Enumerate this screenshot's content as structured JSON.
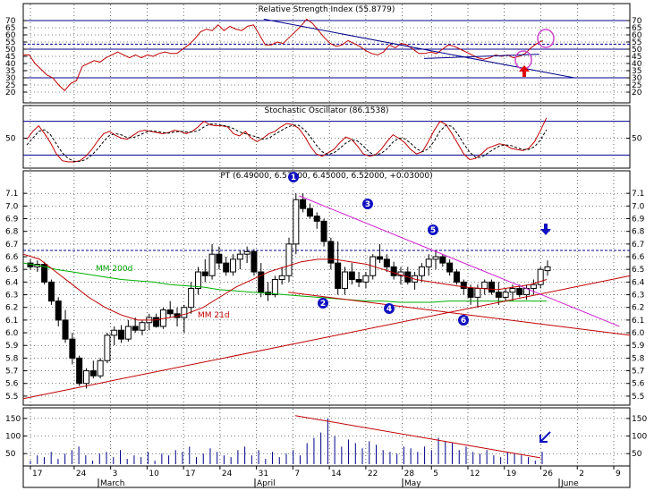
{
  "chart_data": [
    {
      "type": "line",
      "title": "Relative Strength Index (55.8779)",
      "ylim": [
        15,
        75
      ],
      "yticks": [
        20,
        25,
        30,
        35,
        40,
        45,
        50,
        55,
        60,
        65,
        70
      ],
      "reference_lines": [
        70,
        53.5,
        50,
        30
      ],
      "series": [
        {
          "values": [
            46,
            46,
            40,
            36,
            32,
            30,
            25,
            21,
            26,
            28,
            38,
            40,
            42,
            41,
            44,
            46,
            48,
            46,
            44,
            46,
            44,
            46,
            45,
            47,
            48,
            47,
            47,
            50,
            53,
            57,
            62,
            64,
            63,
            67,
            63,
            66,
            64,
            63,
            66,
            67,
            60,
            53,
            53,
            55,
            54,
            58,
            62,
            66,
            71,
            68,
            63,
            58,
            54,
            52,
            53,
            56,
            54,
            52,
            49,
            47,
            46,
            48,
            53,
            51,
            54,
            53,
            50,
            47,
            47,
            48,
            47,
            50,
            53,
            52,
            50,
            48,
            46,
            44,
            43,
            44,
            46,
            45,
            46,
            44,
            45,
            47,
            51,
            54,
            56
          ]
        }
      ],
      "annotations": [
        {
          "type": "trendline",
          "from": [
            48,
            71
          ],
          "to": [
            110,
            30
          ]
        },
        {
          "type": "trendline",
          "from": [
            80,
            43.5
          ],
          "to": [
            103,
            46.5
          ]
        }
      ]
    },
    {
      "type": "line",
      "title": "Stochastic Oscillator (86.1538)",
      "ylim": [
        0,
        100
      ],
      "yticks": [
        50
      ],
      "reference_lines": [
        80,
        20
      ],
      "series": [
        {
          "values": [
            48,
            62,
            72,
            58,
            42,
            22,
            10,
            8,
            8,
            10,
            18,
            30,
            45,
            58,
            62,
            55,
            50,
            48,
            55,
            62,
            64,
            62,
            60,
            58,
            60,
            64,
            62,
            58,
            62,
            70,
            80,
            74,
            72,
            72,
            70,
            58,
            54,
            62,
            50,
            44,
            50,
            58,
            62,
            70,
            76,
            74,
            68,
            54,
            36,
            22,
            18,
            24,
            30,
            42,
            52,
            48,
            36,
            22,
            18,
            20,
            30,
            44,
            56,
            50,
            42,
            30,
            22,
            26,
            44,
            64,
            80,
            74,
            58,
            40,
            22,
            12,
            14,
            22,
            32,
            36,
            40,
            38,
            32,
            30,
            28,
            32,
            44,
            64,
            86
          ]
        },
        {
          "values": [
            38,
            50,
            62,
            65,
            56,
            40,
            24,
            14,
            9,
            9,
            12,
            20,
            31,
            44,
            55,
            58,
            56,
            51,
            51,
            55,
            60,
            63,
            62,
            60,
            59,
            61,
            62,
            61,
            61,
            63,
            70,
            75,
            75,
            73,
            71,
            67,
            61,
            58,
            55,
            52,
            48,
            50,
            57,
            63,
            69,
            73,
            73,
            65,
            53,
            38,
            26,
            21,
            24,
            32,
            41,
            47,
            45,
            36,
            25,
            20,
            23,
            31,
            43,
            50,
            49,
            41,
            31,
            26,
            31,
            45,
            63,
            73,
            71,
            57,
            40,
            25,
            16,
            16,
            23,
            30,
            36,
            38,
            37,
            33,
            30,
            30,
            35,
            47,
            65
          ]
        }
      ]
    },
    {
      "type": "candlestick",
      "title": "PT (6.49000, 6.57000, 6.45000, 6.52000, +0.03000)",
      "ylim": [
        5.45,
        7.2
      ],
      "yticks": [
        5.5,
        5.6,
        5.7,
        5.8,
        5.9,
        6.0,
        6.1,
        6.2,
        6.3,
        6.4,
        6.5,
        6.6,
        6.7,
        6.8,
        6.9,
        7.0,
        7.1
      ],
      "reference_lines": [
        6.65
      ],
      "ohlc": [
        [
          6.55,
          6.58,
          6.5,
          6.52
        ],
        [
          6.52,
          6.57,
          6.48,
          6.54
        ],
        [
          6.54,
          6.56,
          6.38,
          6.4
        ],
        [
          6.4,
          6.42,
          6.22,
          6.25
        ],
        [
          6.25,
          6.28,
          6.05,
          6.1
        ],
        [
          6.1,
          6.18,
          5.92,
          5.95
        ],
        [
          5.95,
          6.0,
          5.75,
          5.8
        ],
        [
          5.8,
          5.82,
          5.58,
          5.6
        ],
        [
          5.6,
          5.72,
          5.56,
          5.7
        ],
        [
          5.7,
          5.78,
          5.64,
          5.66
        ],
        [
          5.66,
          5.8,
          5.64,
          5.78
        ],
        [
          5.78,
          6.0,
          5.76,
          5.98
        ],
        [
          5.98,
          6.05,
          5.9,
          6.02
        ],
        [
          6.02,
          6.06,
          5.92,
          5.95
        ],
        [
          5.95,
          6.1,
          5.93,
          6.05
        ],
        [
          6.05,
          6.12,
          6.0,
          6.02
        ],
        [
          6.02,
          6.1,
          5.98,
          6.08
        ],
        [
          6.08,
          6.15,
          6.02,
          6.12
        ],
        [
          6.12,
          6.15,
          6.04,
          6.05
        ],
        [
          6.05,
          6.2,
          6.03,
          6.18
        ],
        [
          6.18,
          6.25,
          6.12,
          6.15
        ],
        [
          6.15,
          6.2,
          6.05,
          6.12
        ],
        [
          6.12,
          6.22,
          6.0,
          6.2
        ],
        [
          6.2,
          6.4,
          6.15,
          6.35
        ],
        [
          6.35,
          6.52,
          6.3,
          6.48
        ],
        [
          6.48,
          6.58,
          6.4,
          6.45
        ],
        [
          6.45,
          6.7,
          6.42,
          6.62
        ],
        [
          6.62,
          6.68,
          6.5,
          6.55
        ],
        [
          6.55,
          6.6,
          6.45,
          6.48
        ],
        [
          6.48,
          6.62,
          6.45,
          6.58
        ],
        [
          6.58,
          6.65,
          6.5,
          6.62
        ],
        [
          6.62,
          6.68,
          6.55,
          6.64
        ],
        [
          6.64,
          6.66,
          6.45,
          6.48
        ],
        [
          6.48,
          6.55,
          6.28,
          6.32
        ],
        [
          6.32,
          6.4,
          6.25,
          6.3
        ],
        [
          6.3,
          6.45,
          6.28,
          6.42
        ],
        [
          6.42,
          6.52,
          6.38,
          6.45
        ],
        [
          6.45,
          6.75,
          6.4,
          6.7
        ],
        [
          6.7,
          7.1,
          6.62,
          7.05
        ],
        [
          7.05,
          7.1,
          6.95,
          6.98
        ],
        [
          6.98,
          7.02,
          6.9,
          6.92
        ],
        [
          6.92,
          6.95,
          6.82,
          6.88
        ],
        [
          6.88,
          6.9,
          6.68,
          6.72
        ],
        [
          6.72,
          6.75,
          6.5,
          6.55
        ],
        [
          6.55,
          6.72,
          6.3,
          6.35
        ],
        [
          6.35,
          6.52,
          6.3,
          6.48
        ],
        [
          6.48,
          6.55,
          6.38,
          6.42
        ],
        [
          6.42,
          6.48,
          6.36,
          6.4
        ],
        [
          6.4,
          6.48,
          6.35,
          6.45
        ],
        [
          6.45,
          6.62,
          6.42,
          6.6
        ],
        [
          6.6,
          6.7,
          6.55,
          6.58
        ],
        [
          6.58,
          6.62,
          6.48,
          6.52
        ],
        [
          6.52,
          6.56,
          6.42,
          6.45
        ],
        [
          6.45,
          6.52,
          6.38,
          6.48
        ],
        [
          6.48,
          6.52,
          6.38,
          6.4
        ],
        [
          6.4,
          6.48,
          6.34,
          6.45
        ],
        [
          6.45,
          6.55,
          6.4,
          6.52
        ],
        [
          6.52,
          6.62,
          6.45,
          6.58
        ],
        [
          6.58,
          6.65,
          6.5,
          6.6
        ],
        [
          6.6,
          6.62,
          6.52,
          6.55
        ],
        [
          6.55,
          6.58,
          6.45,
          6.48
        ],
        [
          6.48,
          6.5,
          6.38,
          6.4
        ],
        [
          6.4,
          6.42,
          6.3,
          6.35
        ],
        [
          6.35,
          6.38,
          6.22,
          6.28
        ],
        [
          6.28,
          6.38,
          6.2,
          6.35
        ],
        [
          6.35,
          6.42,
          6.3,
          6.4
        ],
        [
          6.4,
          6.42,
          6.3,
          6.32
        ],
        [
          6.32,
          6.4,
          6.22,
          6.28
        ],
        [
          6.28,
          6.35,
          6.25,
          6.32
        ],
        [
          6.32,
          6.38,
          6.25,
          6.35
        ],
        [
          6.35,
          6.38,
          6.28,
          6.3
        ],
        [
          6.3,
          6.38,
          6.26,
          6.35
        ],
        [
          6.35,
          6.42,
          6.3,
          6.38
        ],
        [
          6.38,
          6.52,
          6.35,
          6.5
        ],
        [
          6.49,
          6.57,
          6.45,
          6.52
        ]
      ],
      "ma_series": [
        {
          "name": "MM 200d",
          "values": [
            6.55,
            6.53,
            6.5,
            6.48,
            6.46,
            6.44,
            6.42,
            6.41,
            6.4,
            6.38,
            6.37,
            6.36,
            6.34,
            6.33,
            6.32,
            6.31,
            6.3,
            6.29,
            6.28,
            6.27,
            6.26,
            6.25,
            6.25,
            6.24,
            6.24,
            6.24,
            6.25,
            6.25,
            6.25,
            6.25,
            6.25,
            6.25,
            6.25
          ]
        },
        {
          "name": "MM 21d",
          "values": [
            6.62,
            6.58,
            6.48,
            6.38,
            6.28,
            6.2,
            6.14,
            6.1,
            6.1,
            6.12,
            6.15,
            6.2,
            6.28,
            6.36,
            6.42,
            6.48,
            6.52,
            6.56,
            6.58,
            6.58,
            6.56,
            6.54,
            6.5,
            6.46,
            6.42,
            6.4,
            6.38,
            6.36,
            6.35,
            6.34,
            6.36,
            6.38,
            6.42
          ]
        }
      ],
      "annotations": [
        {
          "type": "trendline",
          "from": [
            0,
            5.48
          ],
          "to": [
            110,
            6.45
          ]
        },
        {
          "type": "trendline",
          "from": [
            48,
            6.32
          ],
          "to": [
            110,
            5.98
          ]
        },
        {
          "type": "trendline",
          "from": [
            50,
            7.08
          ],
          "to": [
            108,
            6.05
          ]
        },
        {
          "type": "marker",
          "label": "1"
        },
        {
          "type": "marker",
          "label": "2"
        },
        {
          "type": "marker",
          "label": "3"
        },
        {
          "type": "marker",
          "label": "4"
        },
        {
          "type": "marker",
          "label": "5"
        },
        {
          "type": "marker",
          "label": "6"
        }
      ]
    },
    {
      "type": "bar",
      "title": "",
      "ylim": [
        20,
        170
      ],
      "yticks": [
        50,
        100,
        150
      ],
      "values": [
        30,
        45,
        40,
        55,
        35,
        50,
        60,
        70,
        45,
        30,
        50,
        55,
        40,
        60,
        35,
        45,
        40,
        55,
        30,
        50,
        45,
        60,
        55,
        70,
        40,
        50,
        65,
        55,
        45,
        40,
        60,
        70,
        45,
        60,
        35,
        55,
        40,
        50,
        60,
        45,
        80,
        95,
        110,
        150,
        100,
        70,
        90,
        80,
        65,
        85,
        75,
        60,
        55,
        50,
        70,
        65,
        55,
        70,
        60,
        95,
        85,
        80,
        60,
        70,
        55,
        50,
        60,
        45,
        40,
        55,
        50,
        45,
        40,
        30,
        55
      ]
    }
  ],
  "x_axis": {
    "day_labels": [
      "17",
      "24",
      "3",
      "10",
      "17",
      "24",
      "31",
      "7",
      "14",
      "22",
      "28",
      "5",
      "12",
      "19",
      "26",
      "2",
      "9"
    ],
    "month_labels": [
      "March",
      "April",
      "May",
      "June"
    ]
  },
  "text_labels": {
    "ma200": "MM 200d",
    "ma21": "MM 21d"
  },
  "colors": {
    "price_red": "#c00000",
    "ma200_green": "#00b000",
    "trend_magenta": "#d020d0",
    "trend_blue": "#00008b",
    "marker_blue": "#1010c0",
    "highlight_magenta": "#cc44cc",
    "arrow_red": "#e00000"
  }
}
